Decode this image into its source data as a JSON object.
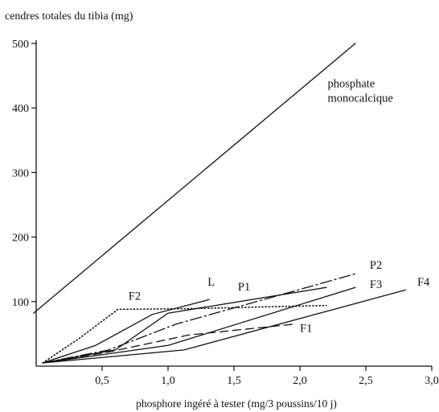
{
  "chart_data": {
    "type": "line",
    "title": "",
    "ylabel": "cendres totales du tibia (mg)",
    "xlabel": "phosphore ingéré à tester (mg/3 poussins/10 j)",
    "xlim": [
      0,
      3.0
    ],
    "ylim": [
      0,
      500
    ],
    "x_ticks": [
      {
        "value": 0.5,
        "label": "0,5"
      },
      {
        "value": 1.0,
        "label": "1,0"
      },
      {
        "value": 1.5,
        "label": "1,5"
      },
      {
        "value": 2.0,
        "label": "2,0"
      },
      {
        "value": 2.5,
        "label": "2,5"
      },
      {
        "value": 3.0,
        "label": "3,0"
      }
    ],
    "y_ticks": [
      {
        "value": 100,
        "label": "100"
      },
      {
        "value": 200,
        "label": "200"
      },
      {
        "value": 300,
        "label": "300"
      },
      {
        "value": 400,
        "label": "400"
      },
      {
        "value": 500,
        "label": "500"
      }
    ],
    "grid": false,
    "series": [
      {
        "name": "phosphate\nmonocalcique",
        "style": "solid",
        "points": [
          [
            -0.02,
            82
          ],
          [
            2.42,
            500
          ]
        ],
        "label_at": [
          2.21,
          432
        ]
      },
      {
        "name": "F2",
        "style": "dotted",
        "points": [
          [
            0.05,
            5
          ],
          [
            0.32,
            42
          ],
          [
            0.62,
            88
          ],
          [
            1.15,
            89
          ],
          [
            2.2,
            94
          ]
        ],
        "label_at": [
          0.7,
          103
        ]
      },
      {
        "name": "L",
        "style": "solid",
        "points": [
          [
            0.05,
            5
          ],
          [
            0.45,
            32
          ],
          [
            0.88,
            80
          ],
          [
            1.31,
            103
          ]
        ],
        "label_at": [
          1.3,
          125
        ]
      },
      {
        "name": "P1",
        "style": "solid",
        "points": [
          [
            0.05,
            5
          ],
          [
            0.6,
            25
          ],
          [
            1.0,
            82
          ],
          [
            2.2,
            122
          ]
        ],
        "label_at": [
          1.53,
          117
        ]
      },
      {
        "name": "P2",
        "style": "dashdot",
        "points": [
          [
            0.05,
            5
          ],
          [
            0.55,
            25
          ],
          [
            1.06,
            65
          ],
          [
            2.42,
            143
          ]
        ],
        "label_at": [
          2.53,
          151
        ]
      },
      {
        "name": "F3",
        "style": "solid",
        "points": [
          [
            0.05,
            5
          ],
          [
            1.0,
            32
          ],
          [
            2.42,
            122
          ]
        ],
        "label_at": [
          2.53,
          121
        ]
      },
      {
        "name": "F4",
        "style": "solid",
        "points": [
          [
            0.05,
            5
          ],
          [
            1.12,
            25
          ],
          [
            2.8,
            118
          ]
        ],
        "label_at": [
          2.89,
          125
        ]
      },
      {
        "name": "F1",
        "style": "dashed",
        "points": [
          [
            0.05,
            5
          ],
          [
            0.55,
            22
          ],
          [
            1.15,
            48
          ],
          [
            1.95,
            65
          ]
        ],
        "label_at": [
          2.0,
          53
        ]
      }
    ]
  }
}
